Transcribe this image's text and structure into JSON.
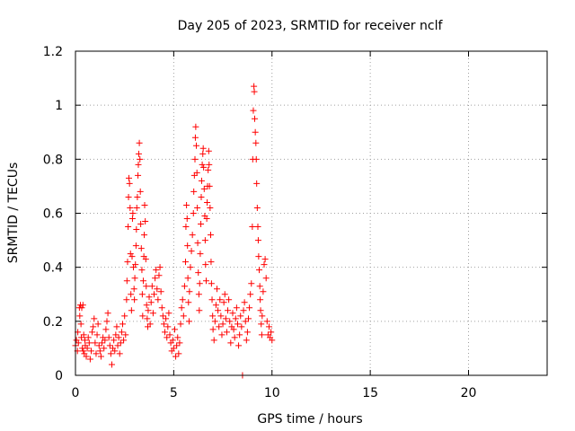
{
  "chart_data": {
    "type": "scatter",
    "title": "Day 205 of 2023, SRMTID for receiver nclf",
    "xlabel": "GPS time / hours",
    "ylabel": "SRMTID / TECUs",
    "xlim": [
      0,
      24
    ],
    "ylim": [
      0,
      1.2
    ],
    "xticks": [
      0,
      5,
      10,
      15,
      20
    ],
    "xtick_labels": [
      "0",
      "5",
      "10",
      "15",
      "20"
    ],
    "yticks": [
      0,
      0.2,
      0.4,
      0.6,
      0.8,
      1,
      1.2
    ],
    "ytick_labels": [
      "0",
      "0.2",
      "0.4",
      "0.6",
      "0.8",
      "1",
      "1.2"
    ],
    "grid": true,
    "marker": "+",
    "color": "#ff0000",
    "series": [
      {
        "name": "SRMTID",
        "points": [
          [
            0.0,
            0.11
          ],
          [
            0.05,
            0.13
          ],
          [
            0.1,
            0.09
          ],
          [
            0.12,
            0.16
          ],
          [
            0.15,
            0.12
          ],
          [
            0.2,
            0.25
          ],
          [
            0.22,
            0.22
          ],
          [
            0.25,
            0.26
          ],
          [
            0.28,
            0.19
          ],
          [
            0.3,
            0.14
          ],
          [
            0.32,
            0.25
          ],
          [
            0.35,
            0.1
          ],
          [
            0.38,
            0.26
          ],
          [
            0.4,
            0.09
          ],
          [
            0.42,
            0.15
          ],
          [
            0.45,
            0.08
          ],
          [
            0.48,
            0.13
          ],
          [
            0.5,
            0.11
          ],
          [
            0.55,
            0.07
          ],
          [
            0.6,
            0.1
          ],
          [
            0.65,
            0.14
          ],
          [
            0.7,
            0.12
          ],
          [
            0.75,
            0.06
          ],
          [
            0.8,
            0.09
          ],
          [
            0.85,
            0.16
          ],
          [
            0.9,
            0.18
          ],
          [
            0.95,
            0.21
          ],
          [
            1.0,
            0.12
          ],
          [
            1.05,
            0.08
          ],
          [
            1.1,
            0.15
          ],
          [
            1.15,
            0.19
          ],
          [
            1.2,
            0.11
          ],
          [
            1.25,
            0.09
          ],
          [
            1.3,
            0.07
          ],
          [
            1.35,
            0.12
          ],
          [
            1.4,
            0.14
          ],
          [
            1.45,
            0.1
          ],
          [
            1.5,
            0.13
          ],
          [
            1.55,
            0.17
          ],
          [
            1.6,
            0.2
          ],
          [
            1.65,
            0.23
          ],
          [
            1.7,
            0.14
          ],
          [
            1.75,
            0.11
          ],
          [
            1.8,
            0.08
          ],
          [
            1.85,
            0.04
          ],
          [
            1.9,
            0.1
          ],
          [
            1.95,
            0.13
          ],
          [
            2.0,
            0.09
          ],
          [
            2.05,
            0.15
          ],
          [
            2.1,
            0.18
          ],
          [
            2.15,
            0.11
          ],
          [
            2.2,
            0.14
          ],
          [
            2.25,
            0.08
          ],
          [
            2.3,
            0.12
          ],
          [
            2.35,
            0.16
          ],
          [
            2.4,
            0.19
          ],
          [
            2.45,
            0.13
          ],
          [
            2.5,
            0.22
          ],
          [
            2.55,
            0.15
          ],
          [
            2.6,
            0.28
          ],
          [
            2.62,
            0.35
          ],
          [
            2.65,
            0.42
          ],
          [
            2.68,
            0.55
          ],
          [
            2.7,
            0.66
          ],
          [
            2.72,
            0.73
          ],
          [
            2.75,
            0.71
          ],
          [
            2.78,
            0.62
          ],
          [
            2.8,
            0.45
          ],
          [
            2.82,
            0.3
          ],
          [
            2.85,
            0.24
          ],
          [
            2.88,
            0.44
          ],
          [
            2.9,
            0.58
          ],
          [
            2.92,
            0.6
          ],
          [
            2.95,
            0.4
          ],
          [
            2.98,
            0.32
          ],
          [
            3.0,
            0.28
          ],
          [
            3.02,
            0.36
          ],
          [
            3.05,
            0.41
          ],
          [
            3.08,
            0.48
          ],
          [
            3.1,
            0.54
          ],
          [
            3.12,
            0.62
          ],
          [
            3.15,
            0.66
          ],
          [
            3.18,
            0.74
          ],
          [
            3.2,
            0.78
          ],
          [
            3.22,
            0.82
          ],
          [
            3.25,
            0.86
          ],
          [
            3.28,
            0.8
          ],
          [
            3.3,
            0.68
          ],
          [
            3.32,
            0.56
          ],
          [
            3.35,
            0.47
          ],
          [
            3.38,
            0.39
          ],
          [
            3.4,
            0.3
          ],
          [
            3.42,
            0.22
          ],
          [
            3.45,
            0.35
          ],
          [
            3.48,
            0.44
          ],
          [
            3.5,
            0.52
          ],
          [
            3.52,
            0.63
          ],
          [
            3.55,
            0.57
          ],
          [
            3.58,
            0.43
          ],
          [
            3.6,
            0.33
          ],
          [
            3.62,
            0.26
          ],
          [
            3.65,
            0.21
          ],
          [
            3.68,
            0.18
          ],
          [
            3.7,
            0.24
          ],
          [
            3.75,
            0.29
          ],
          [
            3.8,
            0.19
          ],
          [
            3.85,
            0.27
          ],
          [
            3.9,
            0.33
          ],
          [
            3.95,
            0.23
          ],
          [
            4.0,
            0.3
          ],
          [
            4.05,
            0.36
          ],
          [
            4.1,
            0.39
          ],
          [
            4.15,
            0.32
          ],
          [
            4.2,
            0.28
          ],
          [
            4.25,
            0.37
          ],
          [
            4.3,
            0.4
          ],
          [
            4.35,
            0.31
          ],
          [
            4.4,
            0.25
          ],
          [
            4.45,
            0.22
          ],
          [
            4.5,
            0.19
          ],
          [
            4.55,
            0.16
          ],
          [
            4.6,
            0.21
          ],
          [
            4.65,
            0.14
          ],
          [
            4.7,
            0.18
          ],
          [
            4.75,
            0.23
          ],
          [
            4.8,
            0.15
          ],
          [
            4.85,
            0.12
          ],
          [
            4.9,
            0.09
          ],
          [
            4.95,
            0.13
          ],
          [
            5.0,
            0.1
          ],
          [
            5.05,
            0.17
          ],
          [
            5.1,
            0.07
          ],
          [
            5.15,
            0.11
          ],
          [
            5.2,
            0.14
          ],
          [
            5.25,
            0.08
          ],
          [
            5.3,
            0.12
          ],
          [
            5.35,
            0.19
          ],
          [
            5.4,
            0.25
          ],
          [
            5.45,
            0.28
          ],
          [
            5.5,
            0.22
          ],
          [
            5.55,
            0.33
          ],
          [
            5.6,
            0.42
          ],
          [
            5.62,
            0.55
          ],
          [
            5.65,
            0.63
          ],
          [
            5.68,
            0.58
          ],
          [
            5.7,
            0.48
          ],
          [
            5.72,
            0.36
          ],
          [
            5.75,
            0.27
          ],
          [
            5.78,
            0.2
          ],
          [
            5.8,
            0.31
          ],
          [
            5.85,
            0.4
          ],
          [
            5.9,
            0.46
          ],
          [
            5.95,
            0.52
          ],
          [
            6.0,
            0.6
          ],
          [
            6.02,
            0.68
          ],
          [
            6.05,
            0.74
          ],
          [
            6.08,
            0.8
          ],
          [
            6.1,
            0.88
          ],
          [
            6.12,
            0.92
          ],
          [
            6.15,
            0.85
          ],
          [
            6.18,
            0.75
          ],
          [
            6.2,
            0.62
          ],
          [
            6.22,
            0.49
          ],
          [
            6.25,
            0.38
          ],
          [
            6.28,
            0.3
          ],
          [
            6.3,
            0.24
          ],
          [
            6.32,
            0.34
          ],
          [
            6.35,
            0.45
          ],
          [
            6.38,
            0.56
          ],
          [
            6.4,
            0.66
          ],
          [
            6.42,
            0.72
          ],
          [
            6.45,
            0.78
          ],
          [
            6.48,
            0.82
          ],
          [
            6.5,
            0.84
          ],
          [
            6.52,
            0.77
          ],
          [
            6.55,
            0.69
          ],
          [
            6.58,
            0.59
          ],
          [
            6.6,
            0.5
          ],
          [
            6.62,
            0.41
          ],
          [
            6.65,
            0.35
          ],
          [
            6.68,
            0.58
          ],
          [
            6.7,
            0.64
          ],
          [
            6.72,
            0.7
          ],
          [
            6.75,
            0.76
          ],
          [
            6.78,
            0.83
          ],
          [
            6.8,
            0.78
          ],
          [
            6.82,
            0.7
          ],
          [
            6.85,
            0.62
          ],
          [
            6.88,
            0.52
          ],
          [
            6.9,
            0.42
          ],
          [
            6.92,
            0.34
          ],
          [
            6.95,
            0.28
          ],
          [
            6.98,
            0.22
          ],
          [
            7.0,
            0.17
          ],
          [
            7.05,
            0.13
          ],
          [
            7.1,
            0.2
          ],
          [
            7.15,
            0.26
          ],
          [
            7.2,
            0.32
          ],
          [
            7.25,
            0.24
          ],
          [
            7.3,
            0.18
          ],
          [
            7.35,
            0.28
          ],
          [
            7.4,
            0.22
          ],
          [
            7.45,
            0.15
          ],
          [
            7.5,
            0.19
          ],
          [
            7.55,
            0.27
          ],
          [
            7.6,
            0.3
          ],
          [
            7.65,
            0.21
          ],
          [
            7.7,
            0.16
          ],
          [
            7.75,
            0.24
          ],
          [
            7.8,
            0.28
          ],
          [
            7.85,
            0.2
          ],
          [
            7.9,
            0.12
          ],
          [
            7.95,
            0.18
          ],
          [
            8.0,
            0.23
          ],
          [
            8.05,
            0.17
          ],
          [
            8.1,
            0.14
          ],
          [
            8.15,
            0.21
          ],
          [
            8.2,
            0.25
          ],
          [
            8.25,
            0.19
          ],
          [
            8.3,
            0.11
          ],
          [
            8.35,
            0.15
          ],
          [
            8.4,
            0.22
          ],
          [
            8.45,
            0.18
          ],
          [
            8.5,
            0.0
          ],
          [
            8.55,
            0.24
          ],
          [
            8.6,
            0.27
          ],
          [
            8.65,
            0.2
          ],
          [
            8.7,
            0.13
          ],
          [
            8.75,
            0.16
          ],
          [
            8.8,
            0.21
          ],
          [
            8.85,
            0.25
          ],
          [
            8.9,
            0.3
          ],
          [
            8.95,
            0.34
          ],
          [
            9.0,
            0.55
          ],
          [
            9.02,
            0.8
          ],
          [
            9.05,
            0.98
          ],
          [
            9.08,
            1.07
          ],
          [
            9.1,
            1.05
          ],
          [
            9.12,
            0.95
          ],
          [
            9.15,
            0.9
          ],
          [
            9.18,
            0.86
          ],
          [
            9.2,
            0.8
          ],
          [
            9.22,
            0.71
          ],
          [
            9.25,
            0.62
          ],
          [
            9.28,
            0.55
          ],
          [
            9.3,
            0.5
          ],
          [
            9.32,
            0.44
          ],
          [
            9.35,
            0.39
          ],
          [
            9.38,
            0.33
          ],
          [
            9.4,
            0.28
          ],
          [
            9.42,
            0.24
          ],
          [
            9.45,
            0.19
          ],
          [
            9.48,
            0.15
          ],
          [
            9.5,
            0.22
          ],
          [
            9.55,
            0.31
          ],
          [
            9.6,
            0.41
          ],
          [
            9.65,
            0.43
          ],
          [
            9.7,
            0.36
          ],
          [
            9.75,
            0.2
          ],
          [
            9.8,
            0.15
          ],
          [
            9.85,
            0.18
          ],
          [
            9.9,
            0.14
          ],
          [
            9.95,
            0.16
          ],
          [
            10.0,
            0.13
          ]
        ]
      }
    ]
  }
}
